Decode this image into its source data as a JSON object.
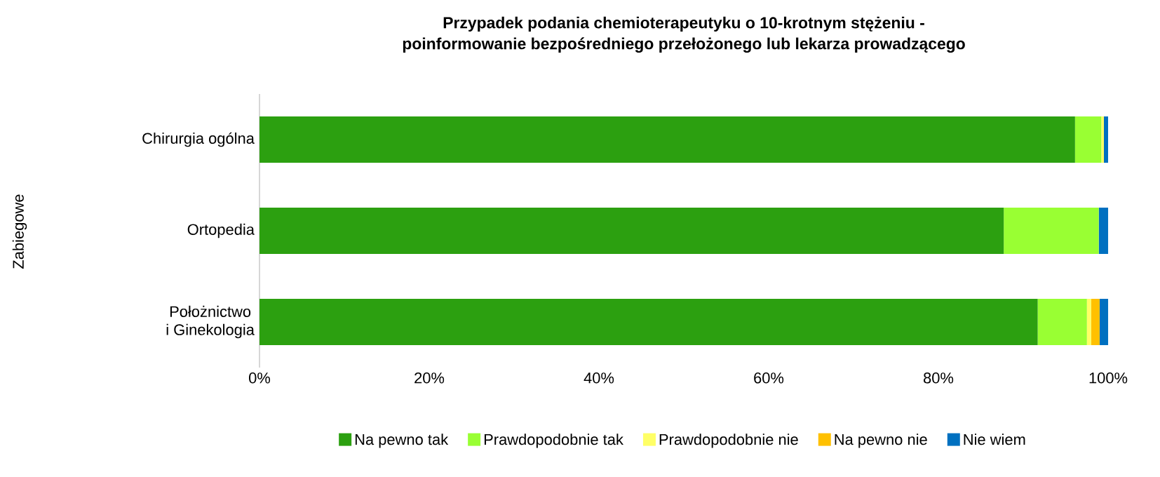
{
  "chart_data": {
    "type": "bar",
    "orientation": "horizontal",
    "stacked": true,
    "title": "Przypadek podania chemioterapeutyku o 10-krotnym stężeniu -\npoinformowanie bezpośredniego przełożonego lub lekarza prowadzącego",
    "annotations": [
      "Zabiegowe"
    ],
    "categories": [
      "Chirurgia ogólna",
      "Ortopedia",
      "Położnictwo\ni Ginekologia"
    ],
    "series": [
      {
        "name": "Na pewno tak",
        "color": "#2ca010",
        "values": [
          96.1,
          87.7,
          91.7
        ]
      },
      {
        "name": "Prawdopodobnie tak",
        "color": "#99ff33",
        "values": [
          3.1,
          11.2,
          5.8
        ]
      },
      {
        "name": "Prawdopodobnie nie",
        "color": "#ffff66",
        "values": [
          0.3,
          0,
          0.5
        ]
      },
      {
        "name": "Na pewno nie",
        "color": "#ffc000",
        "values": [
          0,
          0,
          1.0
        ]
      },
      {
        "name": "Nie wiem",
        "color": "#0070c0",
        "values": [
          0.5,
          1.1,
          1.0
        ]
      }
    ],
    "xlim": [
      0,
      100
    ],
    "xticks": [
      {
        "value": 0,
        "label": "0%"
      },
      {
        "value": 20,
        "label": "20%"
      },
      {
        "value": 40,
        "label": "40%"
      },
      {
        "value": 60,
        "label": "60%"
      },
      {
        "value": 80,
        "label": "80%"
      },
      {
        "value": 100,
        "label": "100%"
      }
    ],
    "grid": false,
    "legend": "bottom"
  }
}
